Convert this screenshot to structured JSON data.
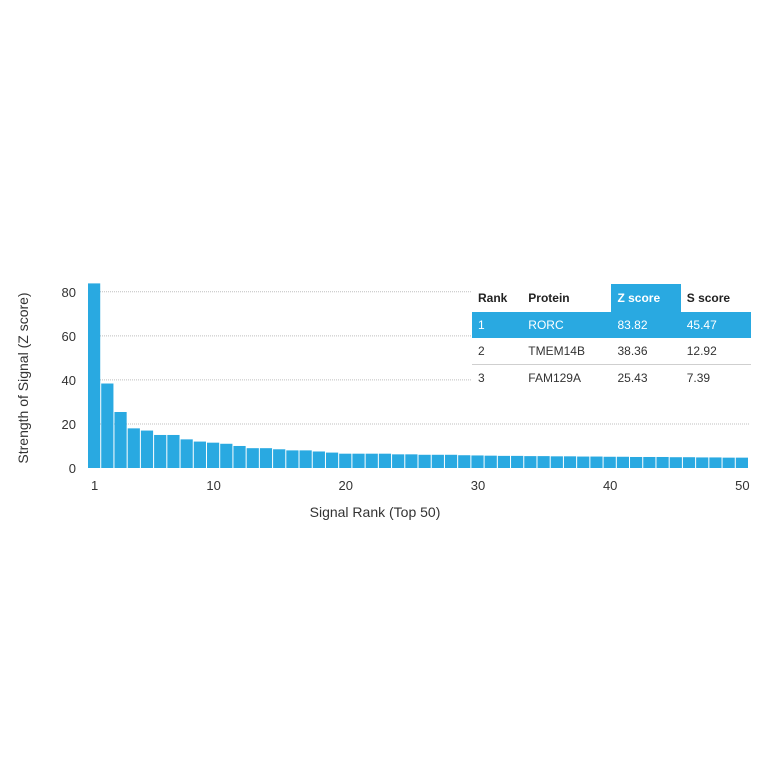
{
  "chart_data": {
    "type": "bar",
    "xlabel": "Signal Rank (Top 50)",
    "ylabel": "Strength of Signal (Z score)",
    "ylim": [
      0,
      84
    ],
    "yticks": [
      0,
      20,
      40,
      60,
      80
    ],
    "xticks": [
      1,
      10,
      20,
      30,
      40,
      50
    ],
    "grid": "horizontal dotted",
    "bar_color": "#29a9e1",
    "x": [
      1,
      2,
      3,
      4,
      5,
      6,
      7,
      8,
      9,
      10,
      11,
      12,
      13,
      14,
      15,
      16,
      17,
      18,
      19,
      20,
      21,
      22,
      23,
      24,
      25,
      26,
      27,
      28,
      29,
      30,
      31,
      32,
      33,
      34,
      35,
      36,
      37,
      38,
      39,
      40,
      41,
      42,
      43,
      44,
      45,
      46,
      47,
      48,
      49,
      50
    ],
    "values": [
      83.82,
      38.36,
      25.43,
      18,
      17,
      15,
      15,
      13,
      12,
      11.5,
      11,
      10,
      9,
      9,
      8.5,
      8,
      8,
      7.5,
      7,
      6.5,
      6.5,
      6.5,
      6.5,
      6.2,
      6.2,
      6,
      6,
      6,
      5.8,
      5.7,
      5.6,
      5.5,
      5.5,
      5.4,
      5.4,
      5.3,
      5.3,
      5.2,
      5.2,
      5.1,
      5.1,
      5,
      5,
      5,
      4.9,
      4.9,
      4.8,
      4.8,
      4.7,
      4.7
    ]
  },
  "table": {
    "headers": [
      "Rank",
      "Protein",
      "Z score",
      "S score"
    ],
    "highlight_color": "#29a9e1",
    "rows": [
      {
        "rank": "1",
        "protein": "RORC",
        "z": "83.82",
        "s": "45.47"
      },
      {
        "rank": "2",
        "protein": "TMEM14B",
        "z": "38.36",
        "s": "12.92"
      },
      {
        "rank": "3",
        "protein": "FAM129A",
        "z": "25.43",
        "s": "7.39"
      }
    ]
  }
}
